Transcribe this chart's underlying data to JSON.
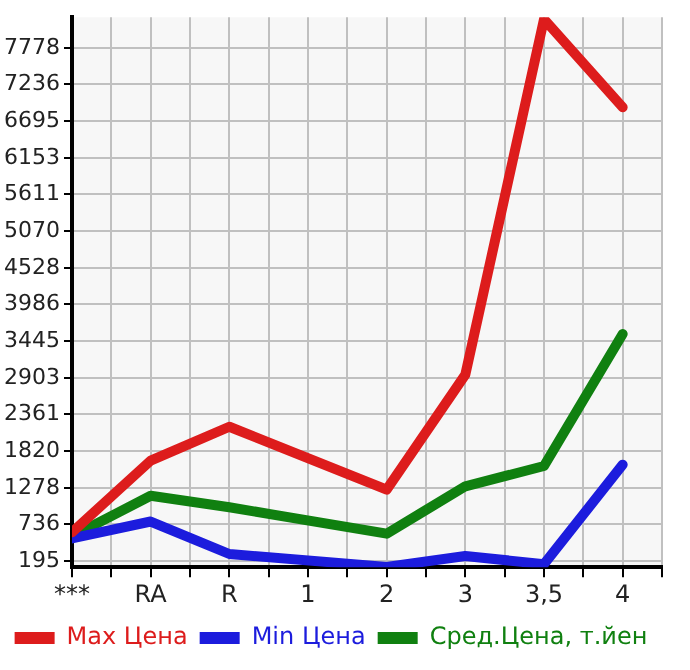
{
  "chart_data": {
    "type": "line",
    "categories": [
      "***",
      "RA",
      "R",
      "1",
      "2",
      "3",
      "3,5",
      "4"
    ],
    "series": [
      {
        "name": "Max Цена",
        "color": "#dd1c1c",
        "values": [
          620,
          1680,
          2180,
          null,
          1250,
          2950,
          8200,
          6900
        ]
      },
      {
        "name": "Min Цена",
        "color": "#1c1cdd",
        "values": [
          530,
          780,
          300,
          null,
          110,
          270,
          150,
          1620
        ]
      },
      {
        "name": "Сред.Цена, т.йен",
        "color": "#108010",
        "values": [
          560,
          1160,
          990,
          null,
          600,
          1300,
          1600,
          3550
        ]
      }
    ],
    "ylim": [
      105,
      8230
    ],
    "yticks": [
      195,
      736,
      1278,
      1820,
      2361,
      2903,
      3445,
      3986,
      4528,
      5070,
      5611,
      6153,
      6695,
      7236,
      7778
    ],
    "grid": true,
    "legend": "bottom",
    "line_style": "solid"
  }
}
